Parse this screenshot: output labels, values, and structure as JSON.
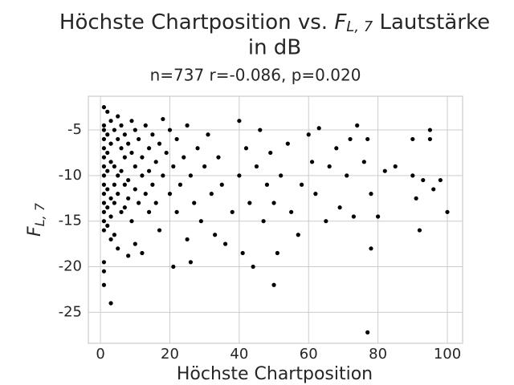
{
  "chart_data": {
    "type": "scatter",
    "title": [
      "Höchste Chartposition vs. ",
      "F",
      "L, 7",
      " Lautstärke",
      "in dB"
    ],
    "subtitle": "n=737 r=-0.086, p=0.020",
    "xlabel": "Höchste Chartposition",
    "ylabel": [
      "F",
      "L, 7"
    ],
    "color": "#000000",
    "grid": true,
    "xlim": [
      -3.5,
      104.4
    ],
    "ylim": [
      -28.4,
      -1.3
    ],
    "xticks": [
      0,
      20,
      40,
      60,
      80,
      100
    ],
    "yticks": [
      -25,
      -20,
      -15,
      -10,
      -5
    ],
    "x": [
      1,
      1,
      1,
      1,
      1,
      1,
      1,
      1,
      1,
      1,
      1,
      1,
      1,
      1,
      1,
      1,
      1,
      2,
      2,
      2,
      2,
      2,
      2,
      2,
      3,
      3,
      3,
      3,
      3,
      3,
      3,
      4,
      4,
      4,
      4,
      4,
      5,
      5,
      5,
      5,
      5,
      6,
      6,
      6,
      6,
      7,
      7,
      7,
      7,
      8,
      8,
      8,
      8,
      9,
      9,
      9,
      10,
      10,
      10,
      10,
      11,
      11,
      12,
      12,
      12,
      13,
      13,
      14,
      14,
      14,
      15,
      15,
      16,
      16,
      17,
      17,
      18,
      18,
      19,
      20,
      20,
      21,
      21,
      22,
      22,
      23,
      24,
      25,
      25,
      26,
      26,
      27,
      28,
      29,
      30,
      31,
      32,
      33,
      34,
      35,
      36,
      38,
      40,
      40,
      41,
      42,
      43,
      44,
      45,
      46,
      47,
      48,
      49,
      50,
      50,
      51,
      52,
      54,
      55,
      57,
      58,
      60,
      61,
      62,
      63,
      65,
      66,
      68,
      69,
      71,
      72,
      73,
      74,
      76,
      77,
      77,
      78,
      78,
      80,
      82,
      85,
      90,
      90,
      91,
      92,
      93,
      95,
      95,
      96,
      98,
      100
    ],
    "values": [
      -2.5,
      -4.5,
      -5,
      -6,
      -7,
      -8,
      -9,
      -10,
      -11,
      -12,
      -13,
      -14,
      -15,
      -16,
      -19.5,
      -20.5,
      -22,
      -3,
      -5.5,
      -7.5,
      -9.5,
      -11.5,
      -13.5,
      -15.5,
      -4,
      -6.5,
      -8.5,
      -12.5,
      -14.5,
      -17,
      -24,
      -5,
      -9,
      -11,
      -13,
      -16.5,
      -3.5,
      -6,
      -10,
      -12,
      -18,
      -4.5,
      -7,
      -9.5,
      -14,
      -5.5,
      -8,
      -11,
      -13.5,
      -6.5,
      -10.5,
      -12.5,
      -18.8,
      -4,
      -7.5,
      -15,
      -5,
      -9,
      -11.5,
      -17.5,
      -6,
      -13,
      -8,
      -10,
      -18.5,
      -4.5,
      -12,
      -7,
      -9.5,
      -14,
      -5.5,
      -11,
      -8.5,
      -13,
      -6.5,
      -16,
      -10,
      -3.8,
      -7.5,
      -12,
      -5,
      -20,
      -9,
      -14,
      -6,
      -11,
      -8,
      -17,
      -4.5,
      -19.5,
      -10,
      -13,
      -7,
      -15,
      -9,
      -5.5,
      -12,
      -16.5,
      -8,
      -11,
      -17.5,
      -14,
      -4,
      -10,
      -18.5,
      -7,
      -13,
      -20,
      -9,
      -5,
      -15,
      -11,
      -7.5,
      -22,
      -13,
      -18.5,
      -10,
      -6.5,
      -14,
      -16.5,
      -11,
      -5.5,
      -8.5,
      -12,
      -4.8,
      -15,
      -9,
      -7,
      -13.5,
      -10,
      -6,
      -14.5,
      -4.5,
      -8.5,
      -27.2,
      -6,
      -12,
      -18,
      -14.5,
      -9.5,
      -9,
      -6,
      -10,
      -12.5,
      -16,
      -10.5,
      -5,
      -6,
      -11.5,
      -10.5,
      -14
    ]
  }
}
